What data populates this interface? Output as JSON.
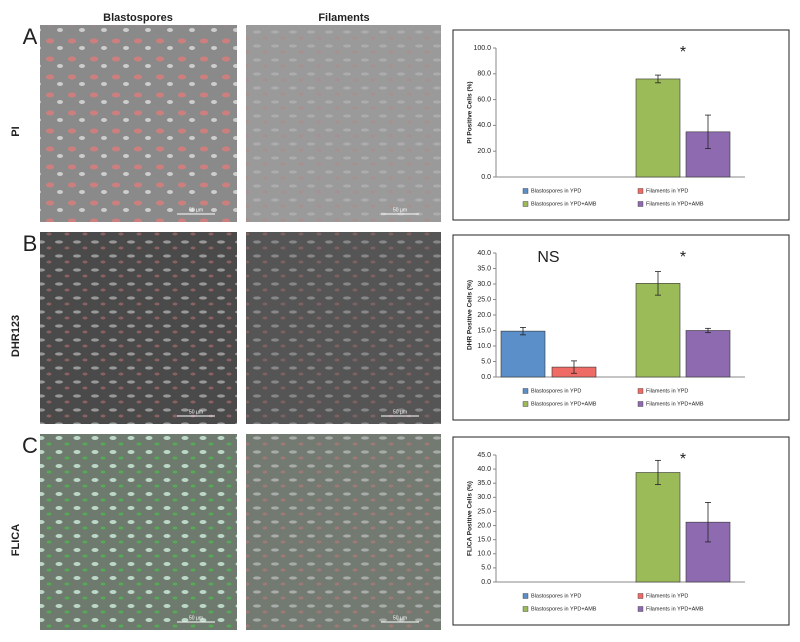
{
  "columns": [
    "Blastospores",
    "Filaments"
  ],
  "rows": [
    {
      "letter": "A",
      "label": "PI"
    },
    {
      "letter": "B",
      "label": "DHR123"
    },
    {
      "letter": "C",
      "label": "FLICA"
    }
  ],
  "scale_bar": "50 µm",
  "chart_data": [
    {
      "type": "bar",
      "ylabel": "PI Positive Cells (%)",
      "ylim": [
        0,
        100
      ],
      "yticks": [
        {
          "value": 0,
          "label": "0.0"
        },
        {
          "value": 20,
          "label": "20.0"
        },
        {
          "value": 40,
          "label": "40.0"
        },
        {
          "value": 60,
          "label": "60.0"
        },
        {
          "value": 80,
          "label": "80.0"
        },
        {
          "value": 100,
          "label": "100.0"
        }
      ],
      "annotations": [
        "*"
      ],
      "series": [
        {
          "name": "Blastospores in YPD",
          "color": "#5b8fc9",
          "values": [
            0
          ],
          "errors": [
            null
          ]
        },
        {
          "name": "Filaments in YPD",
          "color": "#ee6b66",
          "values": [
            0
          ],
          "errors": [
            null
          ]
        },
        {
          "name": "Blastospores in YPD+AMB",
          "color": "#9bbb59",
          "values": [
            76
          ],
          "errors": [
            3
          ]
        },
        {
          "name": "Filaments in YPD+AMB",
          "color": "#8e6bb0",
          "values": [
            35
          ],
          "errors": [
            13
          ]
        }
      ]
    },
    {
      "type": "bar",
      "ylabel": "DHR Positive Cells (%)",
      "ylim": [
        0,
        40
      ],
      "yticks": [
        {
          "value": 0,
          "label": "0.0"
        },
        {
          "value": 5,
          "label": "5.0"
        },
        {
          "value": 10,
          "label": "10.0"
        },
        {
          "value": 15,
          "label": "15.0"
        },
        {
          "value": 20,
          "label": "20.0"
        },
        {
          "value": 25,
          "label": "25.0"
        },
        {
          "value": 30,
          "label": "30.0"
        },
        {
          "value": 35,
          "label": "35.0"
        },
        {
          "value": 40,
          "label": "40.0"
        }
      ],
      "annotations": [
        "NS",
        "*"
      ],
      "series": [
        {
          "name": "Blastospores in YPD",
          "color": "#5b8fc9",
          "values": [
            14.8
          ],
          "errors": [
            1.2
          ]
        },
        {
          "name": "Filaments in YPD",
          "color": "#ee6b66",
          "values": [
            3.2
          ],
          "errors": [
            2
          ]
        },
        {
          "name": "Blastospores in YPD+AMB",
          "color": "#9bbb59",
          "values": [
            30.2
          ],
          "errors": [
            3.8
          ]
        },
        {
          "name": "Filaments in YPD+AMB",
          "color": "#8e6bb0",
          "values": [
            15
          ],
          "errors": [
            0.7
          ]
        }
      ]
    },
    {
      "type": "bar",
      "ylabel": "FLICA  Positive Cells (%)",
      "ylim": [
        0,
        45
      ],
      "yticks": [
        {
          "value": 0,
          "label": "0.0"
        },
        {
          "value": 5,
          "label": "5.0"
        },
        {
          "value": 10,
          "label": "10.0"
        },
        {
          "value": 15,
          "label": "15.0"
        },
        {
          "value": 20,
          "label": "20.0"
        },
        {
          "value": 25,
          "label": "25.0"
        },
        {
          "value": 30,
          "label": "30.0"
        },
        {
          "value": 35,
          "label": "35.0"
        },
        {
          "value": 40,
          "label": "40.0"
        },
        {
          "value": 45,
          "label": "45.0"
        }
      ],
      "annotations": [
        "*"
      ],
      "series": [
        {
          "name": "Blastospores in YPD",
          "color": "#5b8fc9",
          "values": [
            0
          ],
          "errors": [
            null
          ]
        },
        {
          "name": "Filaments in YPD",
          "color": "#ee6b66",
          "values": [
            0
          ],
          "errors": [
            null
          ]
        },
        {
          "name": "Blastospores in YPD+AMB",
          "color": "#9bbb59",
          "values": [
            38.8
          ],
          "errors": [
            4.3
          ]
        },
        {
          "name": "Filaments in YPD+AMB",
          "color": "#8e6bb0",
          "values": [
            21.2
          ],
          "errors": [
            7
          ]
        }
      ]
    }
  ]
}
